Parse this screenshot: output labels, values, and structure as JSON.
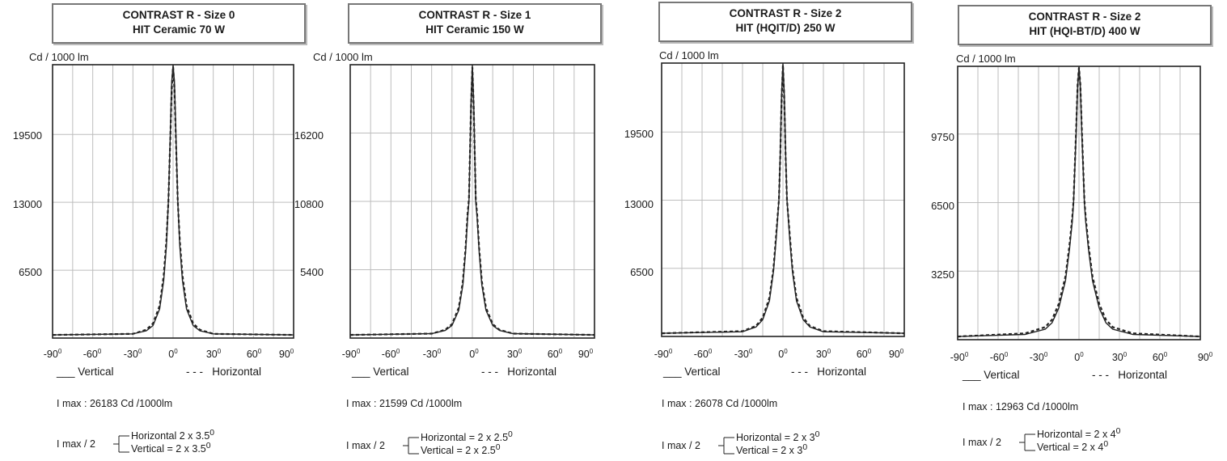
{
  "colors": {
    "frame": "#222222",
    "grid": "#bdbdbd",
    "curve": "#222222",
    "title_border": "#777777"
  },
  "chart_data": [
    {
      "type": "line",
      "title": "CONTRAST R - Size 0",
      "subtitle": "HIT Ceramic 70 W",
      "ylabel": "Cd / 1000 lm",
      "xlim": [
        -90,
        90
      ],
      "ylim": [
        0,
        26183
      ],
      "x_ticks": [
        "-90",
        "-60",
        "-30",
        "0",
        "30",
        "60",
        "90"
      ],
      "y_ticks": [
        6500,
        13000,
        19500
      ],
      "grid": true,
      "series": [
        {
          "name": "Vertical",
          "style": "solid",
          "x": [
            -90,
            -30,
            -20,
            -15,
            -10,
            -7,
            -5,
            -3.5,
            -2,
            -1,
            0,
            1,
            2,
            3.5,
            5,
            7,
            10,
            15,
            20,
            30,
            90
          ],
          "y": [
            300,
            400,
            700,
            1200,
            2800,
            5500,
            8800,
            13100,
            20000,
            24500,
            26183,
            24500,
            20000,
            13100,
            8800,
            5500,
            2800,
            1200,
            700,
            400,
            300
          ]
        },
        {
          "name": "Horizontal",
          "style": "dashed",
          "x": [
            -90,
            -30,
            -20,
            -15,
            -10,
            -7,
            -5,
            -3.5,
            -2,
            -1,
            0,
            1,
            2,
            3.5,
            5,
            7,
            10,
            15,
            20,
            30,
            90
          ],
          "y": [
            300,
            400,
            800,
            1400,
            3100,
            6000,
            9300,
            13100,
            19500,
            24000,
            26000,
            24000,
            19500,
            13100,
            9300,
            6000,
            3100,
            1400,
            800,
            400,
            300
          ]
        }
      ],
      "legend": [
        "Vertical",
        "Horizontal"
      ],
      "imax_text": "I max :  26183 Cd /1000lm",
      "half_label": "I max / 2",
      "half_horizontal": "Horizontal  2 x 3.5",
      "half_vertical": "Vertical = 2 x 3.5"
    },
    {
      "type": "line",
      "title": "CONTRAST R - Size 1",
      "subtitle": "HIT Ceramic 150 W",
      "ylabel": "Cd / 1000 lm",
      "xlim": [
        -90,
        90
      ],
      "ylim": [
        0,
        21599
      ],
      "x_ticks": [
        "-90",
        "-60",
        "-30",
        "0",
        "30",
        "60",
        "90"
      ],
      "y_ticks": [
        5400,
        10800,
        16200
      ],
      "grid": true,
      "series": [
        {
          "name": "Vertical",
          "style": "solid",
          "x": [
            -90,
            -30,
            -20,
            -15,
            -10,
            -7,
            -5,
            -3.5,
            -2.5,
            -1,
            0,
            1,
            2.5,
            3.5,
            5,
            7,
            10,
            15,
            20,
            30,
            90
          ],
          "y": [
            250,
            350,
            600,
            1000,
            2200,
            4200,
            6800,
            9500,
            10800,
            18500,
            21599,
            18500,
            10800,
            9500,
            6800,
            4200,
            2200,
            1000,
            600,
            350,
            250
          ]
        },
        {
          "name": "Horizontal",
          "style": "dashed",
          "x": [
            -90,
            -30,
            -20,
            -15,
            -10,
            -7,
            -5,
            -3.5,
            -2.5,
            -1,
            0,
            1,
            2.5,
            3.5,
            5,
            7,
            10,
            15,
            20,
            30,
            90
          ],
          "y": [
            250,
            350,
            650,
            1100,
            2400,
            4500,
            7100,
            9800,
            11000,
            18200,
            21400,
            18200,
            11000,
            9800,
            7100,
            4500,
            2400,
            1100,
            650,
            350,
            250
          ]
        }
      ],
      "legend": [
        "Vertical",
        "Horizontal"
      ],
      "imax_text": "I max :  21599 Cd /1000lm",
      "half_label": "I max / 2",
      "half_horizontal": "Horizontal = 2 x 2.5",
      "half_vertical": "Vertical = 2 x 2.5"
    },
    {
      "type": "line",
      "title": "CONTRAST R - Size 2",
      "subtitle": "HIT (HQIT/D) 250 W",
      "ylabel": "Cd / 1000 lm",
      "xlim": [
        -90,
        90
      ],
      "ylim": [
        0,
        26078
      ],
      "x_ticks": [
        "-90",
        "-60",
        "-30",
        "0",
        "30",
        "60",
        "90"
      ],
      "y_ticks": [
        6500,
        13000,
        19500
      ],
      "grid": true,
      "series": [
        {
          "name": "Vertical",
          "style": "solid",
          "x": [
            -90,
            -30,
            -20,
            -15,
            -10,
            -7,
            -5,
            -3,
            -2,
            -1,
            0,
            1,
            2,
            3,
            5,
            7,
            10,
            15,
            20,
            30,
            90
          ],
          "y": [
            300,
            450,
            900,
            1600,
            3400,
            6200,
            9400,
            13000,
            17500,
            23000,
            26078,
            23000,
            17500,
            13000,
            9400,
            6200,
            3400,
            1600,
            900,
            450,
            300
          ]
        },
        {
          "name": "Horizontal",
          "style": "dashed",
          "x": [
            -90,
            -30,
            -20,
            -15,
            -10,
            -7,
            -5,
            -3,
            -2,
            -1,
            0,
            1,
            2,
            3,
            5,
            7,
            10,
            15,
            20,
            30,
            90
          ],
          "y": [
            300,
            500,
            1000,
            1800,
            3700,
            6500,
            9800,
            13000,
            17200,
            22600,
            25900,
            22600,
            17200,
            13000,
            9800,
            6500,
            3700,
            1800,
            1000,
            500,
            300
          ]
        }
      ],
      "legend": [
        "Vertical",
        "Horizontal"
      ],
      "imax_text": "I max :  26078 Cd /1000lm",
      "half_label": "I max / 2",
      "half_horizontal": "Horizontal = 2 x 3",
      "half_vertical": "Vertical = 2 x 3"
    },
    {
      "type": "line",
      "title": "CONTRAST R - Size 2",
      "subtitle": "HIT (HQI-BT/D) 400 W",
      "ylabel": "Cd / 1000 lm",
      "xlim": [
        -90,
        90
      ],
      "ylim": [
        0,
        12963
      ],
      "x_ticks": [
        "-90",
        "-60",
        "-30",
        "0",
        "30",
        "60",
        "90"
      ],
      "y_ticks": [
        3250,
        6500,
        9750
      ],
      "grid": true,
      "series": [
        {
          "name": "Vertical",
          "style": "solid",
          "x": [
            -90,
            -40,
            -25,
            -20,
            -15,
            -10,
            -7,
            -5,
            -4,
            -2,
            -1,
            0,
            1,
            2,
            4,
            5,
            7,
            10,
            15,
            20,
            25,
            40,
            90
          ],
          "y": [
            150,
            250,
            500,
            800,
            1500,
            2800,
            4300,
            5600,
            6480,
            10000,
            12000,
            12963,
            12000,
            10000,
            6480,
            5600,
            4300,
            2800,
            1500,
            800,
            500,
            250,
            150
          ]
        },
        {
          "name": "Horizontal",
          "style": "dashed",
          "x": [
            -90,
            -40,
            -25,
            -20,
            -15,
            -10,
            -7,
            -5,
            -4,
            -2,
            -1,
            0,
            1,
            2,
            4,
            5,
            7,
            10,
            15,
            20,
            25,
            40,
            90
          ],
          "y": [
            150,
            300,
            600,
            950,
            1700,
            3000,
            4500,
            5800,
            6600,
            10200,
            12100,
            12900,
            12100,
            10200,
            6600,
            5800,
            4500,
            3000,
            1700,
            950,
            600,
            300,
            150
          ]
        }
      ],
      "legend": [
        "Vertical",
        "Horizontal"
      ],
      "imax_text": "I max :  12963 Cd /1000lm",
      "half_label": "I max / 2",
      "half_horizontal": "Horizontal = 2 x 4",
      "half_vertical": "Vertical = 2 x 4"
    }
  ]
}
